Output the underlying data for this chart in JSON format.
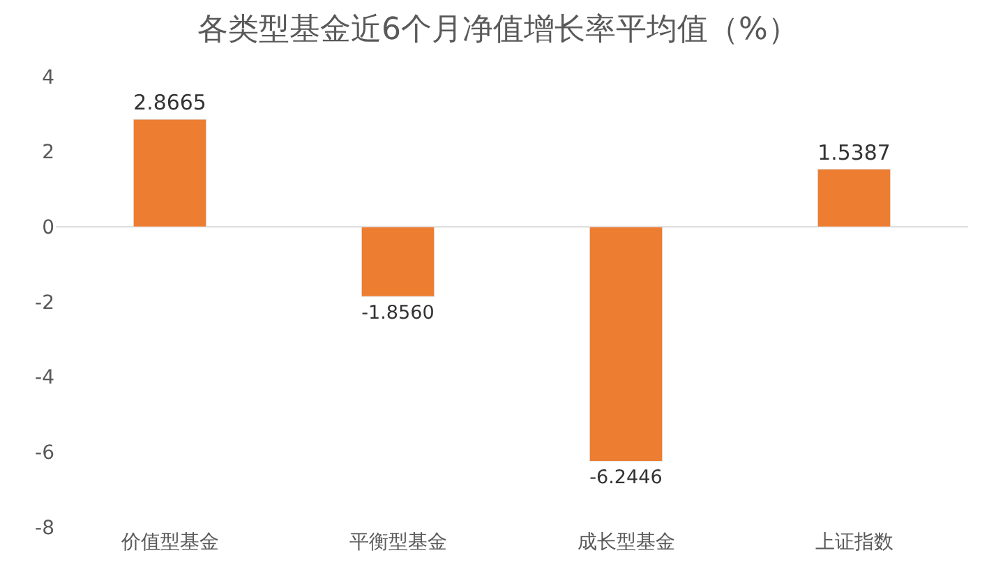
{
  "chart_data": {
    "type": "bar",
    "title": "各类型基金近6个月净值增长率平均值（%）",
    "categories": [
      "价值型基金",
      "平衡型基金",
      "成长型基金",
      "上证指数"
    ],
    "values": [
      2.8665,
      -1.856,
      -6.2446,
      1.5387
    ],
    "value_labels": [
      "2.8665",
      "-1.8560",
      "-6.2446",
      "1.5387"
    ],
    "color": "#ed7d31",
    "ylim": [
      -8,
      4
    ],
    "yticks": [
      -8,
      -6,
      -4,
      -2,
      0,
      2,
      4
    ],
    "legend": false
  }
}
